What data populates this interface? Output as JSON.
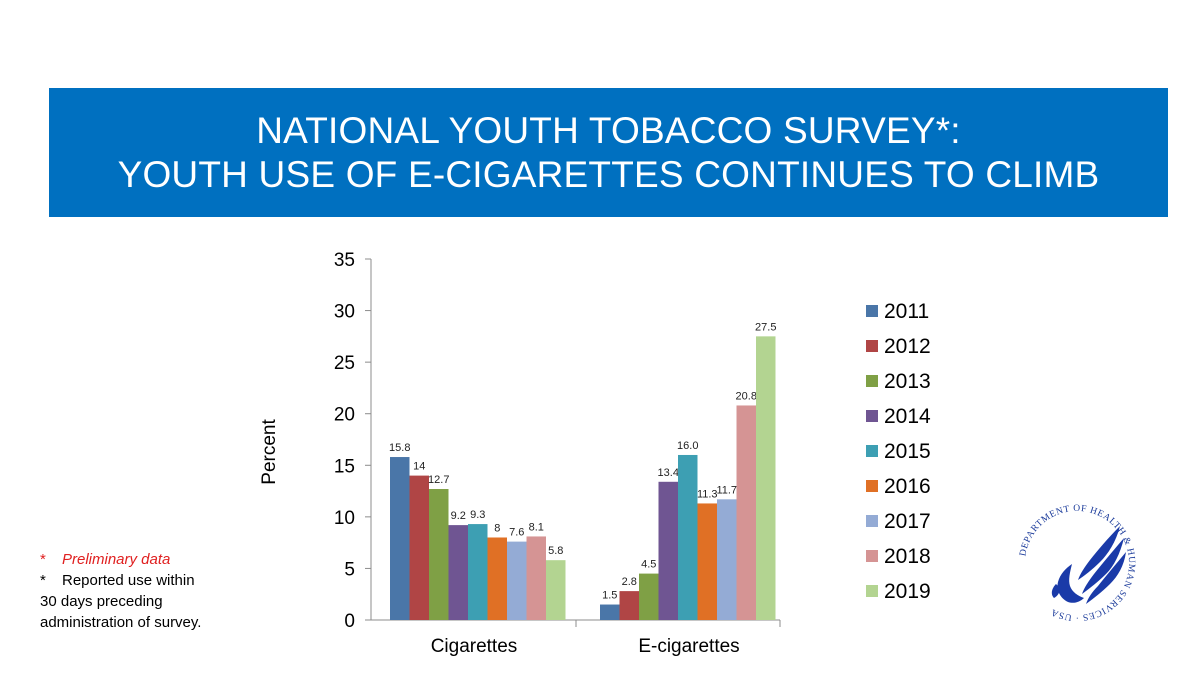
{
  "title": {
    "line1": "NATIONAL YOUTH TOBACCO SURVEY*:",
    "line2": "YOUTH USE OF E-CIGARETTES CONTINUES TO CLIMB"
  },
  "colors": {
    "banner": "#0070c0",
    "series": [
      "#4a76a8",
      "#b04545",
      "#7fa045",
      "#6f5592",
      "#3d9fb3",
      "#e07025",
      "#94abd5",
      "#d59494",
      "#b3d491"
    ]
  },
  "notes": {
    "prelim_marker": "*",
    "prelim_text": "Preliminary data",
    "reported_marker": "*",
    "reported_line1": "Reported use within",
    "reported_line2": "30 days preceding",
    "reported_line3": "administration of survey."
  },
  "seal": {
    "text": "DEPARTMENT OF HEALTH & HUMAN SERVICES · USA"
  },
  "chart_data": {
    "type": "bar",
    "title": "",
    "xlabel": "",
    "ylabel": "Percent",
    "ylim": [
      0,
      35
    ],
    "yticks": [
      0,
      5,
      10,
      15,
      20,
      25,
      30,
      35
    ],
    "categories": [
      "Cigarettes",
      "E-cigarettes"
    ],
    "legend_position": "right",
    "series": [
      {
        "name": "2011",
        "values": [
          15.8,
          1.5
        ],
        "labels": [
          "15.8",
          "1.5"
        ]
      },
      {
        "name": "2012",
        "values": [
          14,
          2.8
        ],
        "labels": [
          "14",
          "2.8"
        ]
      },
      {
        "name": "2013",
        "values": [
          12.7,
          4.5
        ],
        "labels": [
          "12.7",
          "4.5"
        ]
      },
      {
        "name": "2014",
        "values": [
          9.2,
          13.4
        ],
        "labels": [
          "9.2",
          "13.4"
        ]
      },
      {
        "name": "2015",
        "values": [
          9.3,
          16.0
        ],
        "labels": [
          "9.3",
          "16.0"
        ]
      },
      {
        "name": "2016",
        "values": [
          8,
          11.3
        ],
        "labels": [
          "8",
          "11.3"
        ]
      },
      {
        "name": "2017",
        "values": [
          7.6,
          11.7
        ],
        "labels": [
          "7.6",
          "11.7"
        ]
      },
      {
        "name": "2018",
        "values": [
          8.1,
          20.8
        ],
        "labels": [
          "8.1",
          "20.8"
        ]
      },
      {
        "name": "2019",
        "values": [
          5.8,
          27.5
        ],
        "labels": [
          "5.8",
          "27.5"
        ]
      }
    ]
  }
}
